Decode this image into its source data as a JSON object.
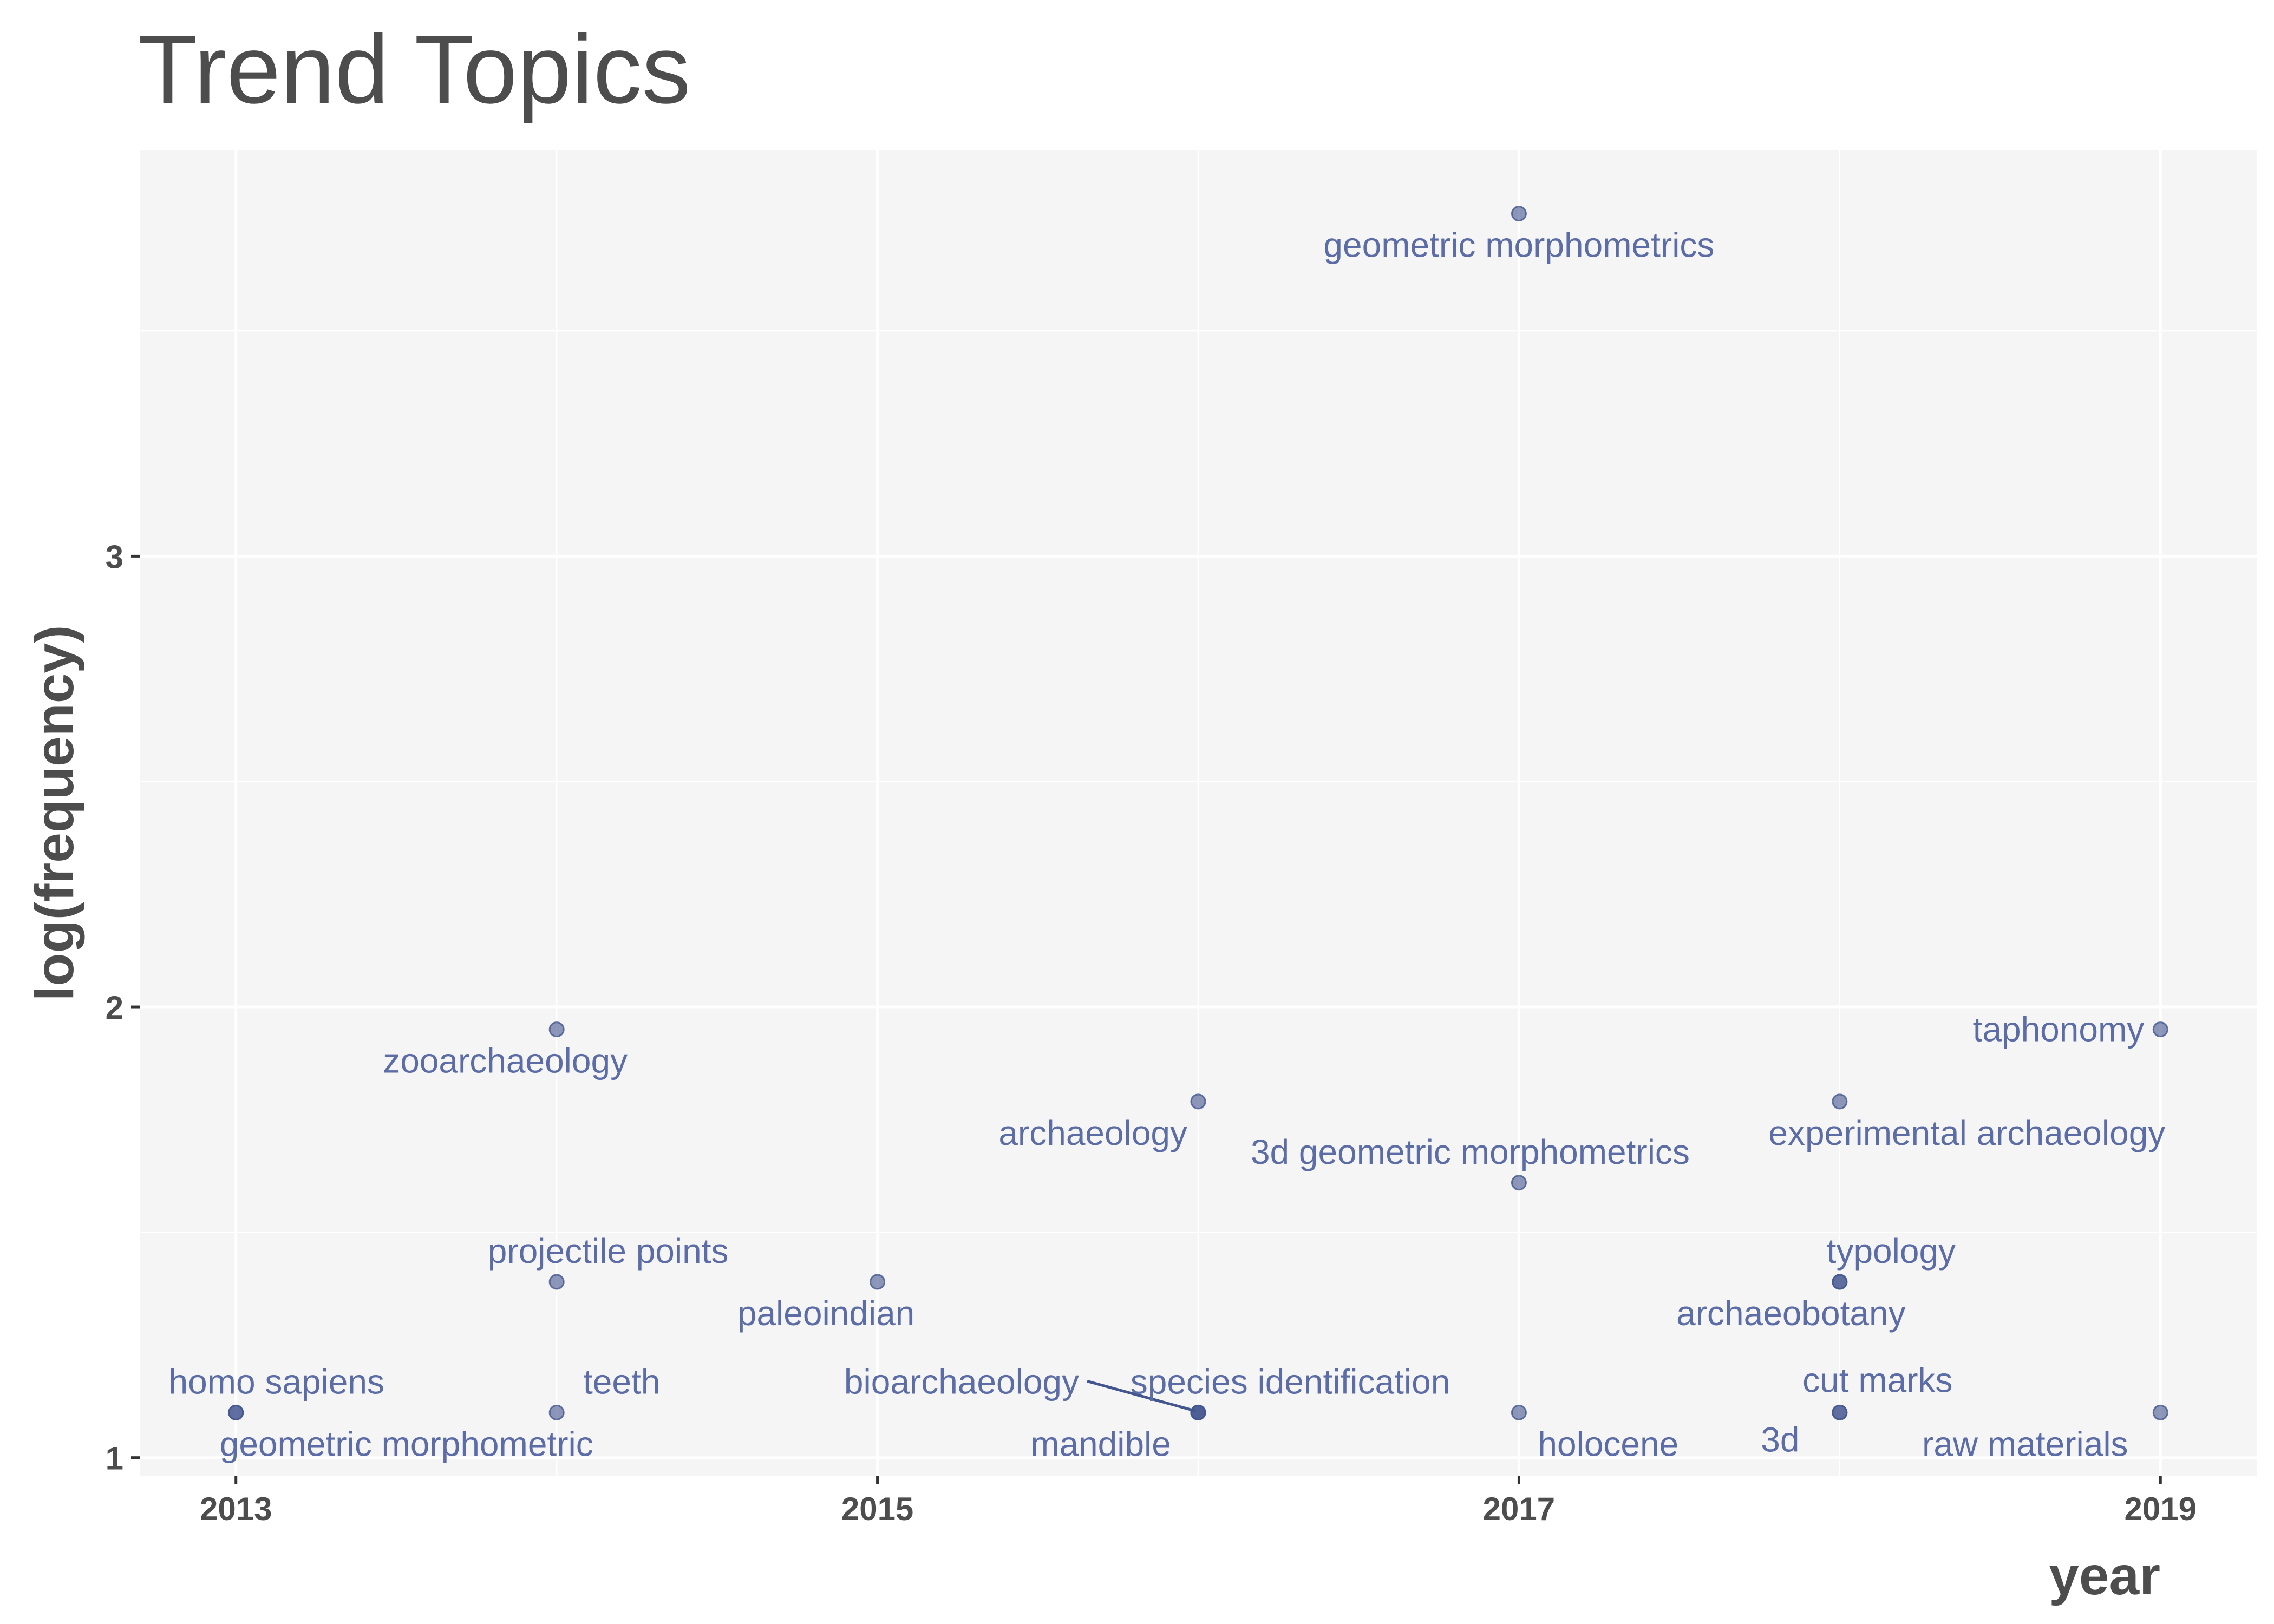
{
  "chart_data": {
    "type": "scatter",
    "title": "Trend Topics",
    "xlabel": "year",
    "ylabel": "log(frequency)",
    "xlim": [
      2012.7,
      2019.3
    ],
    "ylim": [
      0.96,
      3.9
    ],
    "x_ticks": [
      "2013",
      "2015",
      "2017",
      "2019"
    ],
    "y_ticks": [
      "1",
      "2",
      "3"
    ],
    "grid": true,
    "legend": "none",
    "colors": {
      "point": "#42558f",
      "label": "#5b6ca6",
      "panel": "#f5f5f5",
      "grid": "#ffffff"
    },
    "points": [
      {
        "term": "geometric morphometrics",
        "year": 2017,
        "value": 3.76
      },
      {
        "term": "zooarchaeology",
        "year": 2014,
        "value": 1.95
      },
      {
        "term": "taphonomy",
        "year": 2019,
        "value": 1.95
      },
      {
        "term": "archaeology",
        "year": 2016,
        "value": 1.79
      },
      {
        "term": "experimental archaeology",
        "year": 2018,
        "value": 1.79
      },
      {
        "term": "3d geometric morphometrics",
        "year": 2017,
        "value": 1.61
      },
      {
        "term": "projectile points",
        "year": 2014,
        "value": 1.39
      },
      {
        "term": "paleoindian",
        "year": 2015,
        "value": 1.39
      },
      {
        "term": "typology",
        "year": 2018,
        "value": 1.39
      },
      {
        "term": "archaeobotany",
        "year": 2018,
        "value": 1.39
      },
      {
        "term": "homo sapiens",
        "year": 2013,
        "value": 1.1
      },
      {
        "term": "geometric morphometric",
        "year": 2013,
        "value": 1.1
      },
      {
        "term": "teeth",
        "year": 2014,
        "value": 1.1
      },
      {
        "term": "bioarchaeology",
        "year": 2016,
        "value": 1.1
      },
      {
        "term": "species identification",
        "year": 2016,
        "value": 1.1
      },
      {
        "term": "mandible",
        "year": 2016,
        "value": 1.1
      },
      {
        "term": "holocene",
        "year": 2017,
        "value": 1.1
      },
      {
        "term": "cut marks",
        "year": 2018,
        "value": 1.1
      },
      {
        "term": "3d",
        "year": 2018,
        "value": 1.1
      },
      {
        "term": "raw materials",
        "year": 2019,
        "value": 1.1
      }
    ]
  }
}
